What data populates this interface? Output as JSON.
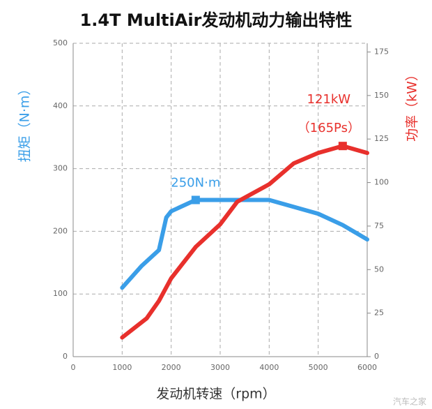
{
  "chart_data": {
    "type": "line",
    "title": "1.4T MultiAir发动机动力输出特性",
    "x_label": "发动机转速（rpm）",
    "y_label": "扭矩（N·m）",
    "y2_label": "功率（kW）",
    "xlim": [
      0,
      6000
    ],
    "xticks": [
      0,
      1000,
      2000,
      3000,
      4000,
      5000,
      6000
    ],
    "ylim": [
      0,
      500
    ],
    "yticks": [
      0,
      100,
      200,
      300,
      400,
      500
    ],
    "y2lim": [
      0,
      180
    ],
    "y2ticks": [
      0,
      25,
      50,
      75,
      100,
      125,
      150,
      175
    ],
    "grid": true,
    "series": [
      {
        "name": "扭矩",
        "color": "#3a9ee8",
        "axis": "y",
        "x": [
          1000,
          1400,
          1750,
          1900,
          2000,
          2500,
          4000,
          5000,
          5500,
          6000
        ],
        "values": [
          110,
          145,
          170,
          222,
          232,
          250,
          250,
          228,
          210,
          187
        ],
        "peak_index": 5,
        "peak_label": "250N·m"
      },
      {
        "name": "功率",
        "color": "#e8302c",
        "axis": "y2",
        "x": [
          1000,
          1500,
          1750,
          2000,
          2500,
          3000,
          3350,
          4000,
          4500,
          5000,
          5500,
          6000
        ],
        "values": [
          11,
          22,
          32,
          45,
          63,
          76,
          89,
          99,
          111,
          117,
          121,
          117
        ],
        "peak_index": 10,
        "peak_label": "121kW",
        "peak_label2": "（165Ps）"
      }
    ],
    "watermark": "汽车之家"
  }
}
